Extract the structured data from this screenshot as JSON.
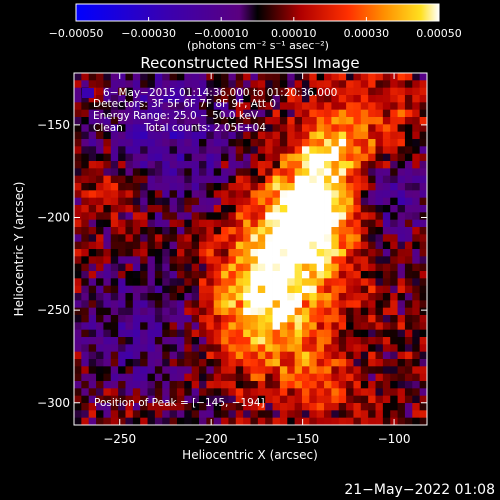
{
  "chart_data": {
    "type": "heatmap",
    "title": "Reconstructed RHESSI Image",
    "xlabel": "Heliocentric X (arcsec)",
    "ylabel": "Heliocentric Y (arcsec)",
    "xlim": [
      -275,
      -82
    ],
    "ylim": [
      -312,
      -122
    ],
    "x_ticks": [
      -250,
      -200,
      -150,
      -100
    ],
    "x_tick_labels": [
      "−250",
      "−200",
      "−150",
      "−100"
    ],
    "y_ticks": [
      -150,
      -200,
      -250,
      -300
    ],
    "y_tick_labels": [
      "−150",
      "−200",
      "−250",
      "−300"
    ],
    "colorbar": {
      "range": [
        -0.0005,
        0.0005
      ],
      "ticks": [
        -0.0005,
        -0.0003,
        -0.0001,
        0.0001,
        0.0003,
        0.0005
      ],
      "tick_labels": [
        "−0.00050",
        "−0.00030",
        "−0.00010",
        "0.00010",
        "0.00030",
        "0.00050"
      ],
      "unit_label": "(photons cm⁻² s⁻¹ asec⁻²)",
      "colors": [
        "#0000ff",
        "#3a00b0",
        "#5a0080",
        "#000000",
        "#b00000",
        "#ff3000",
        "#ff9000",
        "#ffe020",
        "#ffffff"
      ]
    },
    "annotations": {
      "time_range": "6−May−2015 01:14:36.000 to 01:20:36.000",
      "detectors": "Detectors: 3F 5F 6F 7F 8F 9F, Att 0",
      "energy_range": "Energy Range: 25.0 − 50.0 keV",
      "method": "Clean",
      "total_counts": "Total counts: 2.05E+04",
      "peak": "Position of Peak = [−145, −194]"
    },
    "peak_position": [
      -145,
      -194
    ],
    "sources": [
      {
        "x": -145,
        "y": -194,
        "sigma": 16,
        "amp": 1.0
      },
      {
        "x": -160,
        "y": -225,
        "sigma": 22,
        "amp": 0.85
      },
      {
        "x": -175,
        "y": -255,
        "sigma": 20,
        "amp": 0.55
      },
      {
        "x": -135,
        "y": -165,
        "sigma": 14,
        "amp": 0.6
      },
      {
        "x": -145,
        "y": -285,
        "sigma": 15,
        "amp": 0.35
      },
      {
        "x": -110,
        "y": -150,
        "sigma": 18,
        "amp": 0.35
      },
      {
        "x": -255,
        "y": -185,
        "sigma": 12,
        "amp": 0.3
      }
    ],
    "negative_regions": [
      {
        "x": -225,
        "y": -155,
        "sigma": 28,
        "amp": 0.45
      },
      {
        "x": -100,
        "y": -185,
        "sigma": 18,
        "amp": 0.4
      },
      {
        "x": -240,
        "y": -260,
        "sigma": 25,
        "amp": 0.35
      }
    ]
  },
  "footer": {
    "date": "21−May−2022 01:08"
  }
}
